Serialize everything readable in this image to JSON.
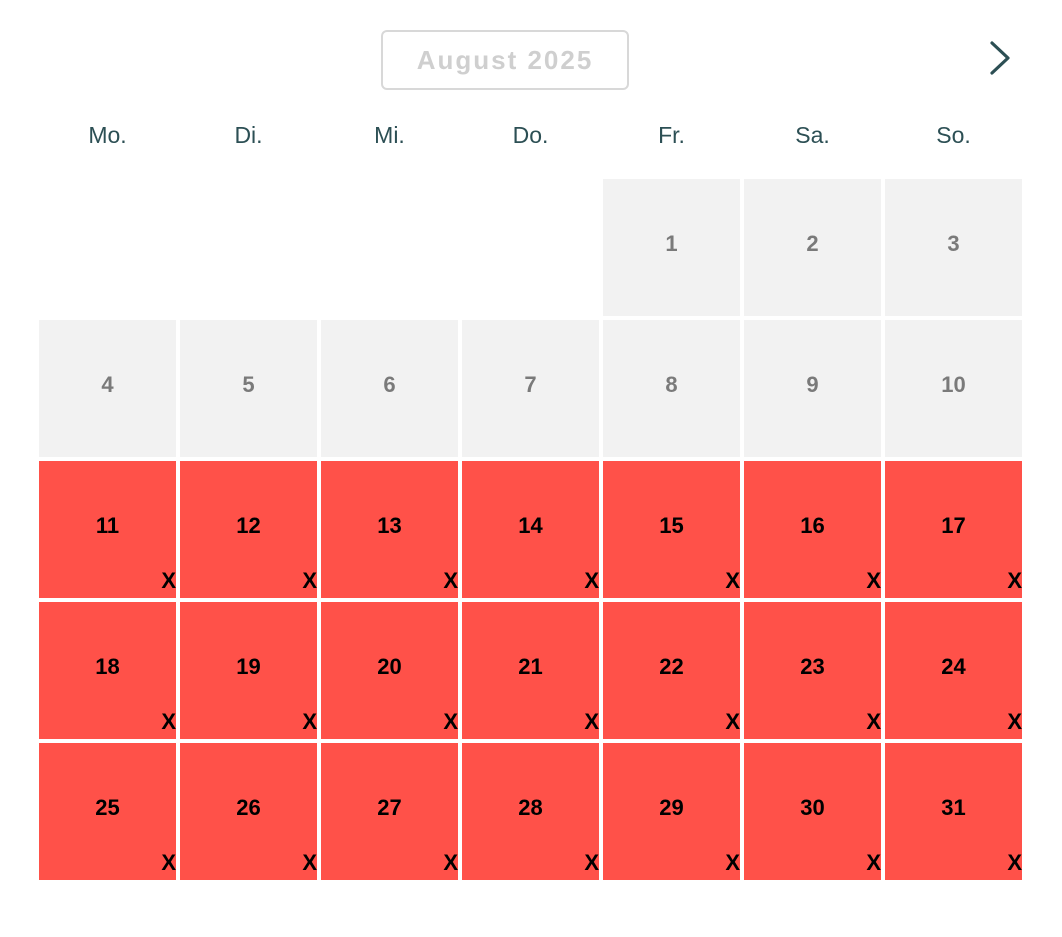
{
  "calendar": {
    "month_label": "August 2025",
    "next_icon": "chevron-right-icon",
    "weekdays": [
      "Mo.",
      "Di.",
      "Mi.",
      "Do.",
      "Fr.",
      "Sa.",
      "So."
    ],
    "leading_empty_days": 4,
    "unavailable_mark": "X",
    "colors": {
      "past": "#f2f2f2",
      "booked": "#ff5149",
      "weekday_text": "#2c4f54"
    },
    "days": [
      {
        "day": "1",
        "status": "past"
      },
      {
        "day": "2",
        "status": "past"
      },
      {
        "day": "3",
        "status": "past"
      },
      {
        "day": "4",
        "status": "past"
      },
      {
        "day": "5",
        "status": "past"
      },
      {
        "day": "6",
        "status": "past"
      },
      {
        "day": "7",
        "status": "past"
      },
      {
        "day": "8",
        "status": "past"
      },
      {
        "day": "9",
        "status": "past"
      },
      {
        "day": "10",
        "status": "past"
      },
      {
        "day": "11",
        "status": "booked"
      },
      {
        "day": "12",
        "status": "booked"
      },
      {
        "day": "13",
        "status": "booked"
      },
      {
        "day": "14",
        "status": "booked"
      },
      {
        "day": "15",
        "status": "booked"
      },
      {
        "day": "16",
        "status": "booked"
      },
      {
        "day": "17",
        "status": "booked"
      },
      {
        "day": "18",
        "status": "booked"
      },
      {
        "day": "19",
        "status": "booked"
      },
      {
        "day": "20",
        "status": "booked"
      },
      {
        "day": "21",
        "status": "booked"
      },
      {
        "day": "22",
        "status": "booked"
      },
      {
        "day": "23",
        "status": "booked"
      },
      {
        "day": "24",
        "status": "booked"
      },
      {
        "day": "25",
        "status": "booked"
      },
      {
        "day": "26",
        "status": "booked"
      },
      {
        "day": "27",
        "status": "booked"
      },
      {
        "day": "28",
        "status": "booked"
      },
      {
        "day": "29",
        "status": "booked"
      },
      {
        "day": "30",
        "status": "booked"
      },
      {
        "day": "31",
        "status": "booked"
      }
    ]
  }
}
